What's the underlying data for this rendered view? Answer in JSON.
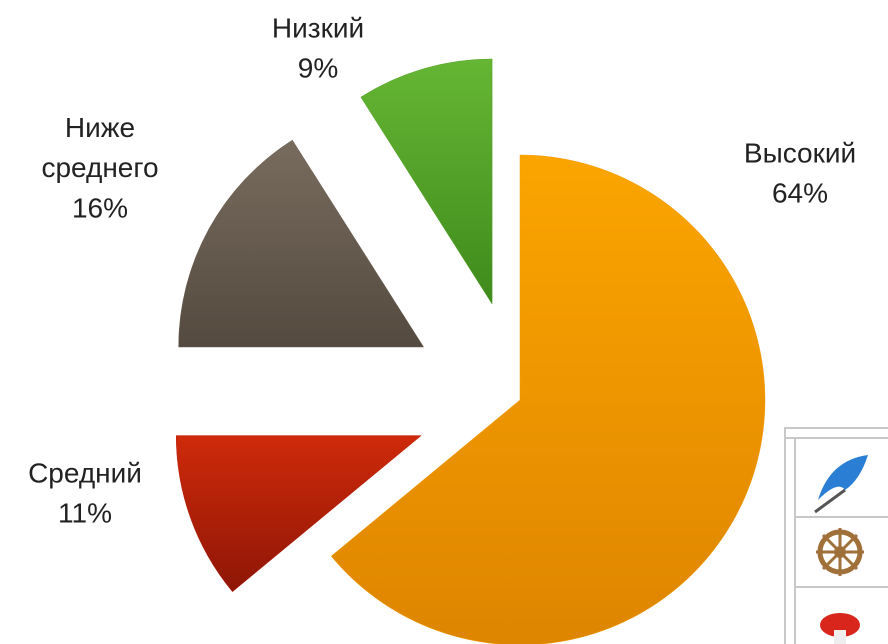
{
  "chart_data": {
    "type": "pie",
    "categories": [
      "Высокий",
      "Средний",
      "Ниже среднего",
      "Низкий"
    ],
    "values": [
      64,
      11,
      16,
      9
    ],
    "value_labels": [
      "64%",
      "11%",
      "16%",
      "9%"
    ],
    "colors": [
      "#f39c0a",
      "#b81e0c",
      "#6a5e50",
      "#55a32a"
    ]
  }
}
